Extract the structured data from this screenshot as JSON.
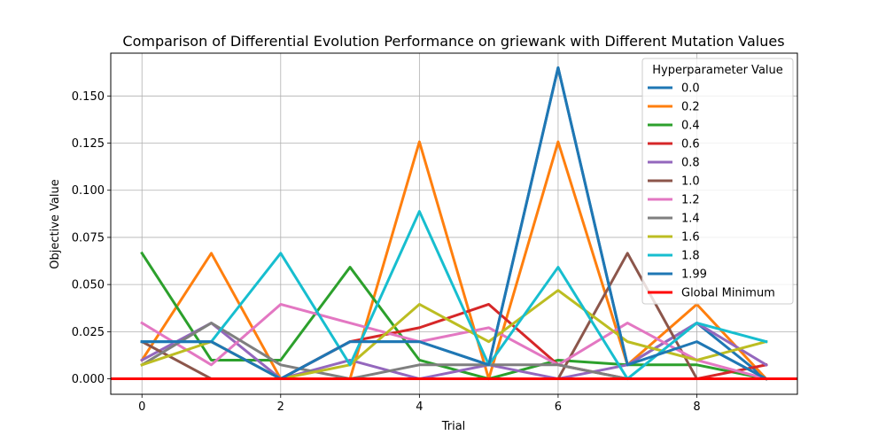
{
  "chart_data": {
    "type": "line",
    "title": "Comparison of Differential Evolution Performance on griewank with Different Mutation Values",
    "xlabel": "Trial",
    "ylabel": "Objective Value",
    "xlim": [
      -0.45,
      9.45
    ],
    "ylim": [
      -0.0082,
      0.1727
    ],
    "xticks": [
      0,
      2,
      4,
      6,
      8
    ],
    "xtick_labels": [
      "0",
      "2",
      "4",
      "6",
      "8"
    ],
    "yticks": [
      0.0,
      0.025,
      0.05,
      0.075,
      0.1,
      0.125,
      0.15
    ],
    "ytick_labels": [
      "0.000",
      "0.025",
      "0.050",
      "0.075",
      "0.100",
      "0.125",
      "0.150"
    ],
    "grid": true,
    "legend_title": "Hyperparameter Value",
    "legend_position": "top-right",
    "x": [
      0,
      1,
      2,
      3,
      4,
      5,
      6,
      7,
      8,
      9
    ],
    "series": [
      {
        "name": "0.0",
        "color": "#1f77b4",
        "values": [
          0.0197,
          0.0197,
          0.0,
          0.0197,
          0.0197,
          0.0074,
          0.165,
          0.0074,
          0.0296,
          0.0
        ]
      },
      {
        "name": "0.2",
        "color": "#ff7f0e",
        "values": [
          0.0099,
          0.0666,
          0.0,
          0.0,
          0.1257,
          0.0,
          0.1257,
          0.0074,
          0.0395,
          0.0
        ]
      },
      {
        "name": "0.4",
        "color": "#2ca02c",
        "values": [
          0.0666,
          0.0099,
          0.0099,
          0.0592,
          0.0099,
          0.0,
          0.0099,
          0.0074,
          0.0074,
          0.0
        ]
      },
      {
        "name": "0.6",
        "color": "#d62728",
        "values": [
          0.0,
          0.0,
          0.0,
          0.0197,
          0.0271,
          0.0395,
          0.0074,
          0.0,
          0.0,
          0.0074
        ]
      },
      {
        "name": "0.8",
        "color": "#9467bd",
        "values": [
          0.0099,
          0.0296,
          0.0,
          0.0099,
          0.0,
          0.0074,
          0.0,
          0.0074,
          0.0296,
          0.0074
        ]
      },
      {
        "name": "1.0",
        "color": "#8c564b",
        "values": [
          0.0197,
          0.0,
          0.0,
          0.0,
          0.0,
          0.0,
          0.0,
          0.0666,
          0.0,
          0.0
        ]
      },
      {
        "name": "1.2",
        "color": "#e377c2",
        "values": [
          0.0296,
          0.0074,
          0.0395,
          0.0296,
          0.0197,
          0.0271,
          0.0074,
          0.0296,
          0.0099,
          0.0
        ]
      },
      {
        "name": "1.4",
        "color": "#7f7f7f",
        "values": [
          0.0074,
          0.0296,
          0.0074,
          0.0,
          0.0074,
          0.0074,
          0.0074,
          0.0,
          0.0,
          0.0
        ]
      },
      {
        "name": "1.6",
        "color": "#bcbd22",
        "values": [
          0.0074,
          0.0197,
          0.0,
          0.0074,
          0.0395,
          0.0197,
          0.0469,
          0.0197,
          0.0099,
          0.0197
        ]
      },
      {
        "name": "1.8",
        "color": "#17becf",
        "values": [
          0.0197,
          0.0197,
          0.0666,
          0.0074,
          0.0888,
          0.0074,
          0.0592,
          0.0,
          0.0296,
          0.0197
        ]
      },
      {
        "name": "1.99",
        "color": "#1f77b4",
        "values": [
          0.0197,
          0.0197,
          0.0,
          0.0197,
          0.0197,
          0.0074,
          0.165,
          0.0074,
          0.0197,
          0.0
        ]
      }
    ],
    "reference_line": {
      "name": "Global Minimum",
      "color": "#ff0000",
      "y": 0.0
    }
  }
}
